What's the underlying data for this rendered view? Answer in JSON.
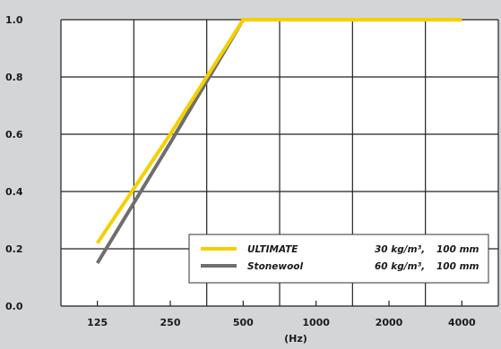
{
  "chart_data": {
    "type": "line",
    "title": "",
    "xlabel": "(Hz)",
    "ylabel": "",
    "categories": [
      "125",
      "250",
      "500",
      "1000",
      "2000",
      "4000"
    ],
    "ylim": [
      0.0,
      1.0
    ],
    "yticks": [
      "0.0",
      "0.2",
      "0.4",
      "0.6",
      "0.8",
      "1.0"
    ],
    "grid": true,
    "legend_position": "bottom-right",
    "series": [
      {
        "name": "ULTIMATE",
        "density": "30 kg/m³,",
        "thickness": "100 mm",
        "color": "#f5cf00",
        "values": [
          0.22,
          0.6,
          1.0,
          1.0,
          1.0,
          1.0
        ]
      },
      {
        "name": "Stonewool",
        "density": "60 kg/m³,",
        "thickness": "100 mm",
        "color": "#6e6e6e",
        "values": [
          0.15,
          0.57,
          1.0,
          1.0,
          1.0,
          1.0
        ]
      }
    ]
  }
}
